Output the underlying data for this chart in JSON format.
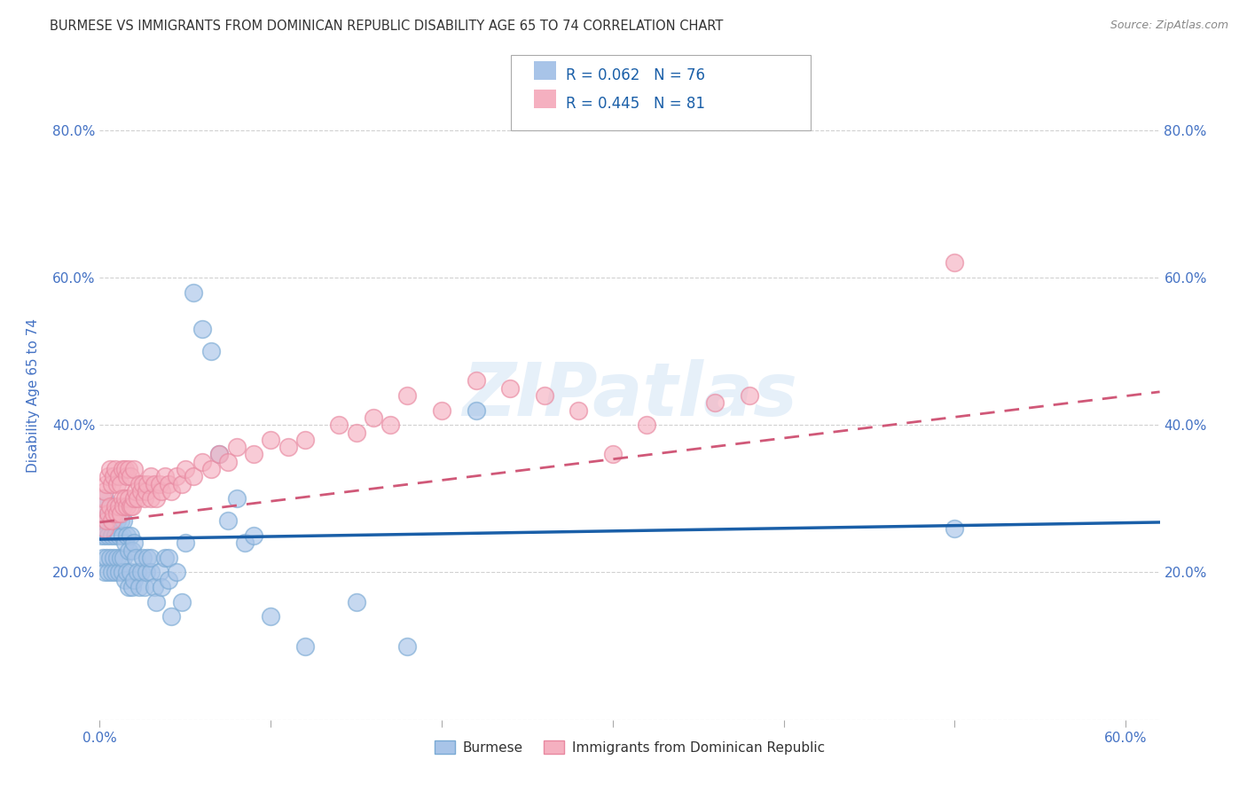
{
  "title": "BURMESE VS IMMIGRANTS FROM DOMINICAN REPUBLIC DISABILITY AGE 65 TO 74 CORRELATION CHART",
  "source": "Source: ZipAtlas.com",
  "ylabel": "Disability Age 65 to 74",
  "xlim": [
    0.0,
    0.62
  ],
  "ylim": [
    0.0,
    0.88
  ],
  "xtick_positions": [
    0.0,
    0.1,
    0.2,
    0.3,
    0.4,
    0.5,
    0.6
  ],
  "xticklabels": [
    "0.0%",
    "",
    "",
    "",
    "",
    "",
    "60.0%"
  ],
  "ytick_positions": [
    0.0,
    0.2,
    0.4,
    0.6,
    0.8
  ],
  "yticklabels": [
    "",
    "20.0%",
    "40.0%",
    "60.0%",
    "80.0%"
  ],
  "watermark": "ZIPatlas",
  "legend_line1": "R = 0.062   N = 76",
  "legend_line2": "R = 0.445   N = 81",
  "color_burmese_fill": "#a8c4e8",
  "color_burmese_edge": "#7aaad4",
  "color_dominican_fill": "#f5b0c0",
  "color_dominican_edge": "#e888a0",
  "color_line_burmese": "#1a5fa8",
  "color_line_dominican": "#d05878",
  "title_color": "#333333",
  "axis_label_color": "#4472c4",
  "tick_color": "#4472c4",
  "grid_color": "#cccccc",
  "bg_color": "#ffffff",
  "burmese_line_x": [
    0.0,
    0.62
  ],
  "burmese_line_y": [
    0.245,
    0.268
  ],
  "dominican_line_x": [
    0.0,
    0.62
  ],
  "dominican_line_y": [
    0.268,
    0.445
  ],
  "burmese_x": [
    0.001,
    0.001,
    0.002,
    0.002,
    0.003,
    0.003,
    0.003,
    0.004,
    0.004,
    0.005,
    0.005,
    0.006,
    0.006,
    0.007,
    0.007,
    0.008,
    0.008,
    0.009,
    0.009,
    0.01,
    0.01,
    0.011,
    0.011,
    0.012,
    0.012,
    0.013,
    0.013,
    0.014,
    0.014,
    0.015,
    0.015,
    0.016,
    0.016,
    0.017,
    0.017,
    0.018,
    0.018,
    0.019,
    0.019,
    0.02,
    0.02,
    0.021,
    0.022,
    0.023,
    0.024,
    0.025,
    0.026,
    0.027,
    0.028,
    0.03,
    0.03,
    0.032,
    0.033,
    0.035,
    0.036,
    0.038,
    0.04,
    0.04,
    0.042,
    0.045,
    0.048,
    0.05,
    0.055,
    0.06,
    0.065,
    0.07,
    0.075,
    0.08,
    0.085,
    0.09,
    0.1,
    0.12,
    0.15,
    0.18,
    0.22,
    0.5
  ],
  "burmese_y": [
    0.25,
    0.29,
    0.22,
    0.27,
    0.2,
    0.25,
    0.3,
    0.22,
    0.27,
    0.2,
    0.25,
    0.22,
    0.27,
    0.2,
    0.25,
    0.22,
    0.27,
    0.2,
    0.25,
    0.22,
    0.27,
    0.2,
    0.25,
    0.22,
    0.27,
    0.2,
    0.25,
    0.22,
    0.27,
    0.19,
    0.24,
    0.2,
    0.25,
    0.18,
    0.23,
    0.2,
    0.25,
    0.18,
    0.23,
    0.19,
    0.24,
    0.22,
    0.2,
    0.18,
    0.2,
    0.22,
    0.18,
    0.2,
    0.22,
    0.2,
    0.22,
    0.18,
    0.16,
    0.2,
    0.18,
    0.22,
    0.19,
    0.22,
    0.14,
    0.2,
    0.16,
    0.24,
    0.58,
    0.53,
    0.5,
    0.36,
    0.27,
    0.3,
    0.24,
    0.25,
    0.14,
    0.1,
    0.16,
    0.1,
    0.42,
    0.26
  ],
  "dominican_x": [
    0.001,
    0.002,
    0.003,
    0.003,
    0.004,
    0.004,
    0.005,
    0.005,
    0.006,
    0.006,
    0.007,
    0.007,
    0.008,
    0.008,
    0.009,
    0.009,
    0.01,
    0.01,
    0.011,
    0.011,
    0.012,
    0.012,
    0.013,
    0.013,
    0.014,
    0.015,
    0.015,
    0.016,
    0.016,
    0.017,
    0.017,
    0.018,
    0.018,
    0.019,
    0.02,
    0.02,
    0.021,
    0.022,
    0.023,
    0.024,
    0.025,
    0.026,
    0.027,
    0.028,
    0.03,
    0.03,
    0.032,
    0.033,
    0.035,
    0.036,
    0.038,
    0.04,
    0.042,
    0.045,
    0.048,
    0.05,
    0.055,
    0.06,
    0.065,
    0.07,
    0.075,
    0.08,
    0.09,
    0.1,
    0.11,
    0.12,
    0.14,
    0.15,
    0.16,
    0.17,
    0.18,
    0.2,
    0.22,
    0.24,
    0.26,
    0.28,
    0.3,
    0.32,
    0.36,
    0.38,
    0.5
  ],
  "dominican_y": [
    0.28,
    0.3,
    0.26,
    0.31,
    0.27,
    0.32,
    0.28,
    0.33,
    0.29,
    0.34,
    0.27,
    0.32,
    0.28,
    0.33,
    0.29,
    0.34,
    0.28,
    0.32,
    0.29,
    0.33,
    0.28,
    0.32,
    0.3,
    0.34,
    0.29,
    0.3,
    0.34,
    0.29,
    0.33,
    0.3,
    0.34,
    0.29,
    0.33,
    0.29,
    0.3,
    0.34,
    0.31,
    0.3,
    0.32,
    0.31,
    0.32,
    0.3,
    0.31,
    0.32,
    0.3,
    0.33,
    0.32,
    0.3,
    0.32,
    0.31,
    0.33,
    0.32,
    0.31,
    0.33,
    0.32,
    0.34,
    0.33,
    0.35,
    0.34,
    0.36,
    0.35,
    0.37,
    0.36,
    0.38,
    0.37,
    0.38,
    0.4,
    0.39,
    0.41,
    0.4,
    0.44,
    0.42,
    0.46,
    0.45,
    0.44,
    0.42,
    0.36,
    0.4,
    0.43,
    0.44,
    0.62
  ]
}
